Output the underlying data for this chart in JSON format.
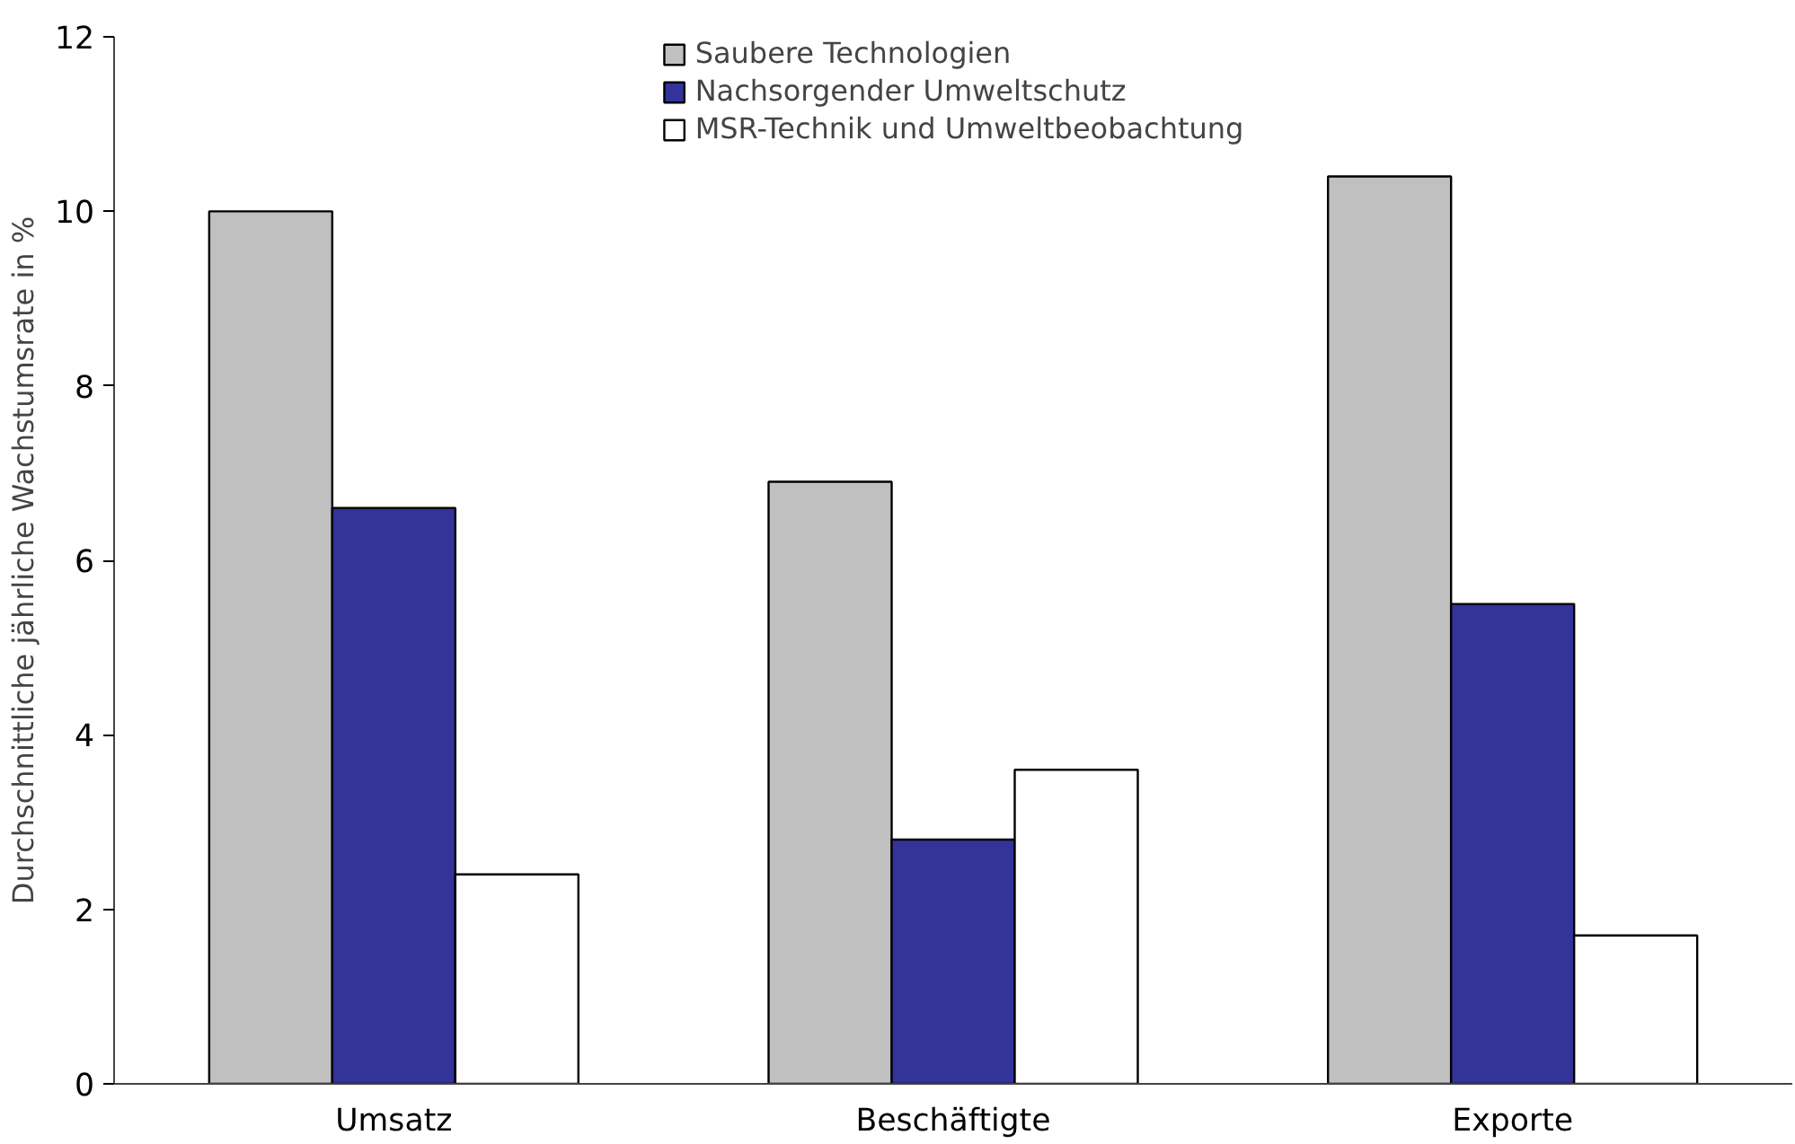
{
  "chart_data": {
    "type": "bar",
    "ylabel": "Durchschnittliche jährliche Wachstumsrate in %",
    "categories": [
      "Umsatz",
      "Beschäftigte",
      "Exporte"
    ],
    "series": [
      {
        "name": "Saubere Technologien",
        "color": "#c0c0c0",
        "values": [
          10.0,
          6.9,
          10.4
        ]
      },
      {
        "name": "Nachsorgender Umweltschutz",
        "color": "#333399",
        "values": [
          6.6,
          2.8,
          5.5
        ]
      },
      {
        "name": "MSR-Technik und Umweltbeobachtung",
        "color": "#ffffff",
        "values": [
          2.4,
          3.6,
          1.7
        ]
      }
    ],
    "ylim": [
      0,
      12
    ],
    "yticks": [
      0,
      2,
      4,
      6,
      8,
      10,
      12
    ],
    "grid": false,
    "legend": "top"
  }
}
